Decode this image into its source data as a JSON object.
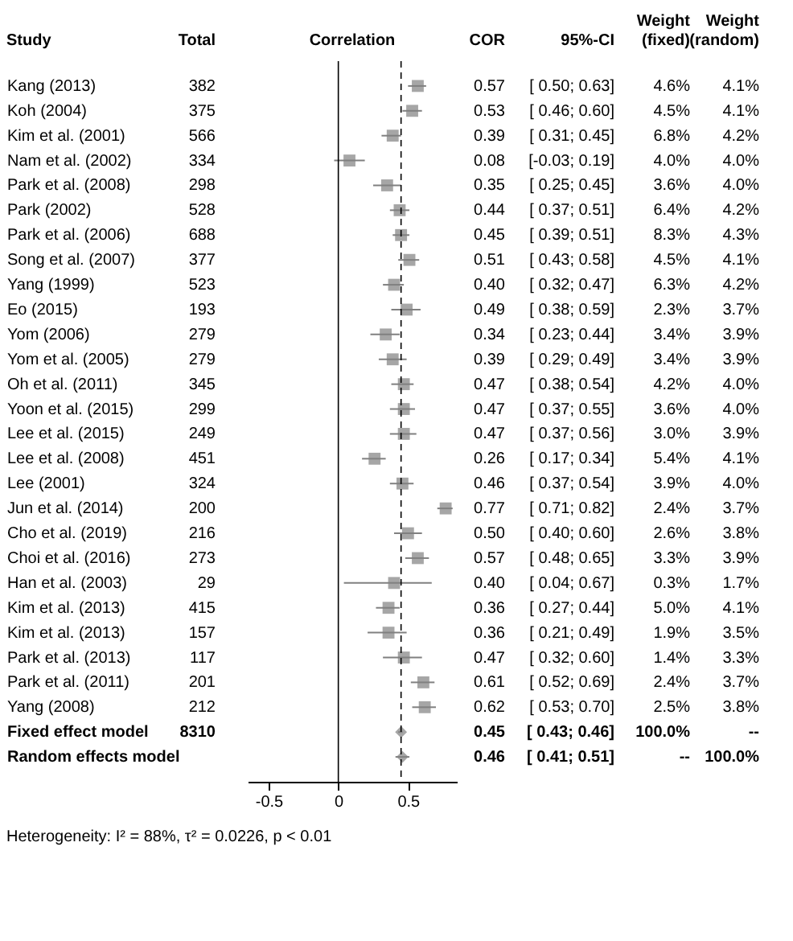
{
  "chart_data": {
    "type": "scatter",
    "orientation": "horizontal",
    "xlabel": "Correlation",
    "ylabel": "Study",
    "categories": [
      "Kang (2013)",
      "Koh (2004)",
      "Kim et al. (2001)",
      "Nam et al. (2002)",
      "Park et al. (2008)",
      "Park (2002)",
      "Park et al. (2006)",
      "Song et al. (2007)",
      "Yang (1999)",
      "Eo (2015)",
      "Yom (2006)",
      "Yom et al. (2005)",
      "Oh et al. (2011)",
      "Yoon et al. (2015)",
      "Lee et al. (2015)",
      "Lee et al. (2008)",
      "Lee (2001)",
      "Jun et al. (2014)",
      "Cho et al. (2019)",
      "Choi et al. (2016)",
      "Han et al. (2003)",
      "Kim et al. (2013)",
      "Kim et al. (2013)",
      "Park et al. (2013)",
      "Park et al. (2011)",
      "Yang (2008)",
      "Fixed effect model",
      "Random effects model"
    ],
    "series": [
      {
        "type": "scatter",
        "marker": "square",
        "color": "#808080",
        "values": [
          0.57,
          0.53,
          0.39,
          0.08,
          0.35,
          0.44,
          0.45,
          0.51,
          0.4,
          0.49,
          0.34,
          0.39,
          0.47,
          0.47,
          0.47,
          0.26,
          0.46,
          0.77,
          0.5,
          0.57,
          0.4,
          0.36,
          0.36,
          0.47,
          0.61,
          0.62,
          null,
          null
        ],
        "errors": [
          [
            0.5,
            0.63
          ],
          [
            0.46,
            0.6
          ],
          [
            0.31,
            0.45
          ],
          [
            -0.03,
            0.19
          ],
          [
            0.25,
            0.45
          ],
          [
            0.37,
            0.51
          ],
          [
            0.39,
            0.51
          ],
          [
            0.43,
            0.58
          ],
          [
            0.32,
            0.47
          ],
          [
            0.38,
            0.59
          ],
          [
            0.23,
            0.44
          ],
          [
            0.29,
            0.49
          ],
          [
            0.38,
            0.54
          ],
          [
            0.37,
            0.55
          ],
          [
            0.37,
            0.56
          ],
          [
            0.17,
            0.34
          ],
          [
            0.37,
            0.54
          ],
          [
            0.71,
            0.82
          ],
          [
            0.4,
            0.6
          ],
          [
            0.48,
            0.65
          ],
          [
            0.04,
            0.67
          ],
          [
            0.27,
            0.44
          ],
          [
            0.21,
            0.49
          ],
          [
            0.32,
            0.6
          ],
          [
            0.52,
            0.69
          ],
          [
            0.53,
            0.7
          ],
          null,
          null
        ],
        "value_labels": [
          "0.57 [ 0.50; 0.63]",
          "0.53 [ 0.46; 0.60]",
          "0.39 [ 0.31; 0.45]",
          "0.08 [-0.03; 0.19]",
          "0.35 [ 0.25; 0.45]",
          "0.44 [ 0.37; 0.51]",
          "0.45 [ 0.39; 0.51]",
          "0.51 [ 0.43; 0.58]",
          "0.40 [ 0.32; 0.47]",
          "0.49 [ 0.38; 0.59]",
          "0.34 [ 0.23; 0.44]",
          "0.39 [ 0.29; 0.49]",
          "0.47 [ 0.38; 0.54]",
          "0.47 [ 0.37; 0.55]",
          "0.47 [ 0.37; 0.56]",
          "0.26 [ 0.17; 0.34]",
          "0.46 [ 0.37; 0.54]",
          "0.77 [ 0.71; 0.82]",
          "0.50 [ 0.40; 0.60]",
          "0.57 [ 0.48; 0.65]",
          "0.40 [ 0.04; 0.67]",
          "0.36 [ 0.27; 0.44]",
          "0.36 [ 0.21; 0.49]",
          "0.47 [ 0.32; 0.60]",
          "0.61 [ 0.52; 0.69]",
          "0.62 [ 0.53; 0.70]",
          null,
          null
        ]
      },
      {
        "type": "scatter",
        "marker": "diamond",
        "color": "#808080",
        "values": [
          null,
          null,
          null,
          null,
          null,
          null,
          null,
          null,
          null,
          null,
          null,
          null,
          null,
          null,
          null,
          null,
          null,
          null,
          null,
          null,
          null,
          null,
          null,
          null,
          null,
          null,
          0.45,
          0.46
        ],
        "errors": [
          null,
          null,
          null,
          null,
          null,
          null,
          null,
          null,
          null,
          null,
          null,
          null,
          null,
          null,
          null,
          null,
          null,
          null,
          null,
          null,
          null,
          null,
          null,
          null,
          null,
          null,
          [
            0.43,
            0.46
          ],
          [
            0.41,
            0.51
          ]
        ],
        "value_labels": [
          null,
          null,
          null,
          null,
          null,
          null,
          null,
          null,
          null,
          null,
          null,
          null,
          null,
          null,
          null,
          null,
          null,
          null,
          null,
          null,
          null,
          null,
          null,
          null,
          null,
          null,
          "0.45 [ 0.43; 0.46]",
          "0.46 [ 0.41; 0.51]"
        ]
      }
    ],
    "xlim": [
      -0.65,
      0.85
    ],
    "xticks": [
      -0.5,
      0,
      0.5
    ],
    "ref_lines": [
      {
        "axis": "x",
        "value": 0,
        "line_style": "solid",
        "color": "#000000"
      },
      {
        "axis": "x",
        "value": 0.45,
        "line_style": "dashed",
        "color": "#000000"
      }
    ],
    "annotations": [
      "Total",
      "COR",
      "95%-CI",
      "Weight (fixed)",
      "Weight (random)",
      "382",
      "375",
      "566",
      "334",
      "298",
      "528",
      "688",
      "377",
      "523",
      "193",
      "279",
      "279",
      "345",
      "299",
      "249",
      "451",
      "324",
      "200",
      "216",
      "273",
      "29",
      "415",
      "157",
      "117",
      "201",
      "212",
      "8310",
      "4.6%",
      "4.5%",
      "6.8%",
      "4.0%",
      "3.6%",
      "6.4%",
      "8.3%",
      "4.5%",
      "6.3%",
      "2.3%",
      "3.4%",
      "3.4%",
      "4.2%",
      "3.6%",
      "3.0%",
      "5.4%",
      "3.9%",
      "2.4%",
      "2.6%",
      "3.3%",
      "0.3%",
      "5.0%",
      "1.9%",
      "1.4%",
      "2.4%",
      "2.5%",
      "100.0%",
      "--",
      "4.1%",
      "4.1%",
      "4.2%",
      "4.0%",
      "4.0%",
      "4.2%",
      "4.3%",
      "4.1%",
      "4.2%",
      "3.7%",
      "3.9%",
      "3.9%",
      "4.0%",
      "4.0%",
      "3.9%",
      "4.1%",
      "4.0%",
      "3.7%",
      "3.8%",
      "3.9%",
      "1.7%",
      "4.1%",
      "3.5%",
      "3.3%",
      "3.7%",
      "3.8%",
      "--",
      "100.0%",
      "Heterogeneity: I² = 88%, τ² = 0.0226, p < 0.01"
    ],
    "grid": false
  }
}
